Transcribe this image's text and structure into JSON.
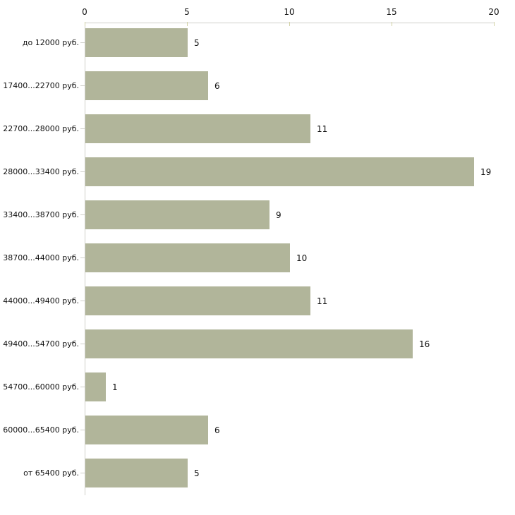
{
  "chart_data": {
    "type": "bar",
    "orientation": "horizontal",
    "title": "",
    "xlabel": "",
    "ylabel": "",
    "categories": [
      "до 12000 руб.",
      "17400...22700 руб.",
      "22700...28000 руб.",
      "28000...33400 руб.",
      "33400...38700 руб.",
      "38700...44000 руб.",
      "44000...49400 руб.",
      "49400...54700 руб.",
      "54700...60000 руб.",
      "60000...65400 руб.",
      "от 65400 руб."
    ],
    "values": [
      5,
      6,
      11,
      19,
      9,
      10,
      11,
      16,
      1,
      6,
      5
    ],
    "xlim": [
      0,
      20
    ],
    "x_ticks": [
      "0",
      "5",
      "10",
      "15",
      "20"
    ],
    "x_tick_values": [
      0,
      5,
      10,
      15,
      20
    ],
    "axis_position": "top",
    "grid": false,
    "legend": false,
    "colors": {
      "bar_fill": "#b1b59a",
      "axis_line": "#cfcfc9",
      "tick_mark": "#d2d2a6",
      "text": "#111111",
      "background": "#ffffff"
    }
  }
}
